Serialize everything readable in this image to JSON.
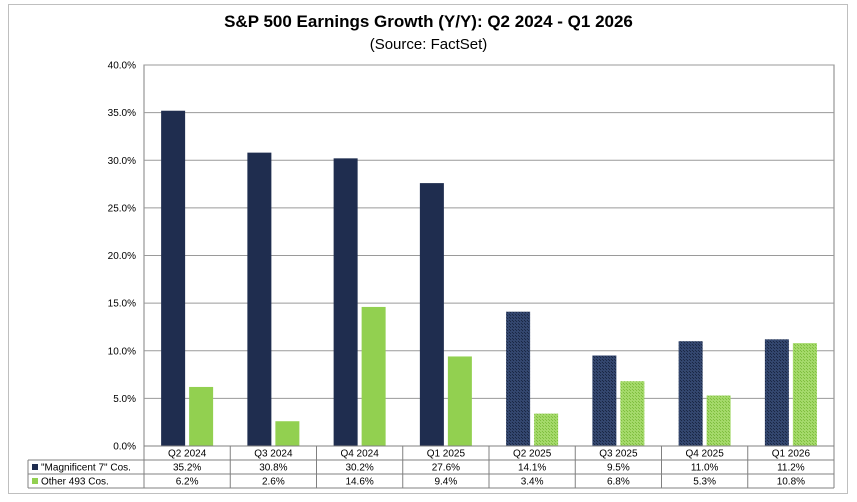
{
  "chart_data": {
    "type": "bar",
    "title": "S&P 500 Earnings Growth (Y/Y): Q2 2024 - Q1 2026",
    "subtitle": "(Source: FactSet)",
    "categories": [
      "Q2 2024",
      "Q3 2024",
      "Q4 2024",
      "Q1 2025",
      "Q2 2025",
      "Q3 2025",
      "Q4 2025",
      "Q1 2026"
    ],
    "series": [
      {
        "name": "\"Magnificent 7\" Cos.",
        "values": [
          35.2,
          30.8,
          30.2,
          27.6,
          14.1,
          9.5,
          11.0,
          11.2
        ],
        "labels": [
          "35.2%",
          "30.8%",
          "30.2%",
          "27.6%",
          "14.1%",
          "9.5%",
          "11.0%",
          "11.2%"
        ],
        "color": "#1f2d4f"
      },
      {
        "name": "Other 493 Cos.",
        "values": [
          6.2,
          2.6,
          14.6,
          9.4,
          3.4,
          6.8,
          5.3,
          10.8
        ],
        "labels": [
          "6.2%",
          "2.6%",
          "14.6%",
          "9.4%",
          "3.4%",
          "6.8%",
          "5.3%",
          "10.8%"
        ],
        "color": "#92d050"
      }
    ],
    "estimate_from_category_index": 4,
    "ylim": [
      0,
      40
    ],
    "yticks": [
      "0.0%",
      "5.0%",
      "10.0%",
      "15.0%",
      "20.0%",
      "25.0%",
      "30.0%",
      "35.0%",
      "40.0%"
    ],
    "grid": true,
    "legend": "data-table",
    "xlabel": "",
    "ylabel": ""
  }
}
